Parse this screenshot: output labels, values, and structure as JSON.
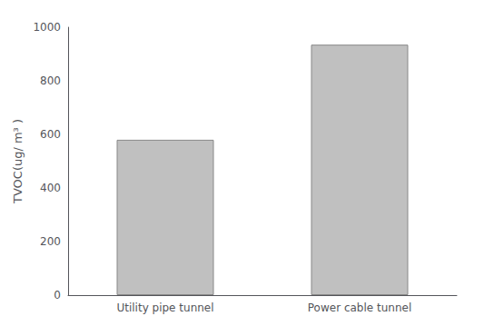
{
  "chart_data": {
    "type": "bar",
    "categories": [
      "Utility pipe tunnel",
      "Power cable tunnel"
    ],
    "values": [
      580,
      935
    ],
    "color": "#c0c0c0",
    "ylabel": "TVOC(ug/ m³ )",
    "ylim": [
      0,
      1000
    ],
    "yticks": [
      0,
      200,
      400,
      600,
      800,
      1000
    ],
    "grid": false
  }
}
